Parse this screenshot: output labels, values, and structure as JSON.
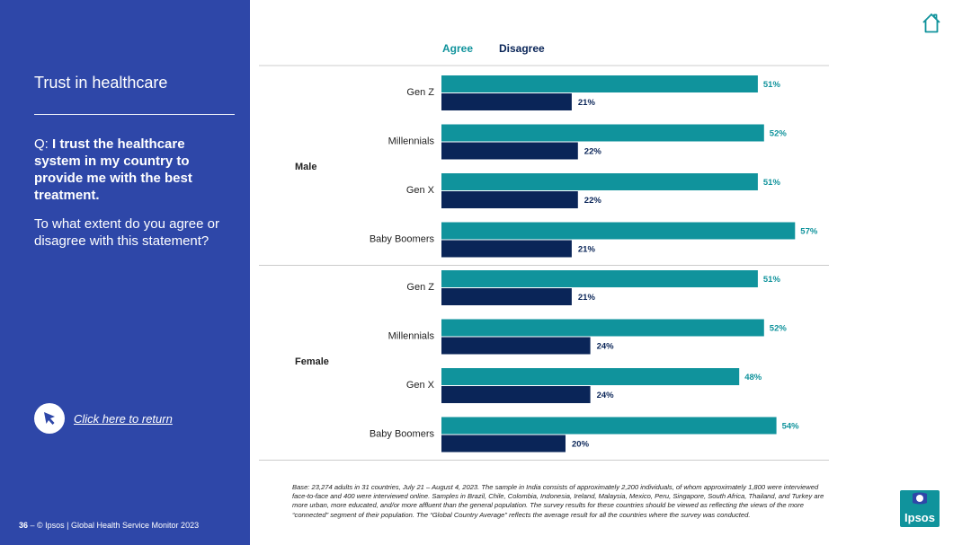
{
  "sidebar": {
    "section_title": "Trust in healthcare",
    "question_prefix": "Q: ",
    "question_bold": "I trust the healthcare system in my country to provide me with the best treatment.",
    "sub_question": "To what extent do you agree or disagree with this statement?",
    "return_link": "Click here to return",
    "footer_page": "36",
    "footer_text": " – © Ipsos | Global Health Service Monitor 2023"
  },
  "legend": {
    "agree": "Agree",
    "disagree": "Disagree"
  },
  "colors": {
    "agree": "#10939c",
    "disagree": "#0a2558",
    "panel": "#2e47a8",
    "home_icon": "#10939c"
  },
  "chart_data": {
    "type": "bar",
    "orientation": "horizontal",
    "value_format": "percent",
    "xlim": [
      0,
      100
    ],
    "groups": [
      {
        "name": "Male",
        "categories": [
          "Gen Z",
          "Millennials",
          "Gen X",
          "Baby Boomers"
        ],
        "series": [
          {
            "name": "Agree",
            "values": [
              51,
              52,
              51,
              57
            ]
          },
          {
            "name": "Disagree",
            "values": [
              21,
              22,
              22,
              21
            ]
          }
        ]
      },
      {
        "name": "Female",
        "categories": [
          "Gen Z",
          "Millennials",
          "Gen X",
          "Baby Boomers"
        ],
        "series": [
          {
            "name": "Agree",
            "values": [
              51,
              52,
              48,
              54
            ]
          },
          {
            "name": "Disagree",
            "values": [
              21,
              24,
              24,
              20
            ]
          }
        ]
      }
    ]
  },
  "base_note": "Base: 23,274 adults in 31 countries, July 21 – August 4, 2023. The sample in India consists of approximately 2,200 individuals, of whom approximately 1,800 were interviewed face-to-face and 400 were interviewed online. Samples in Brazil, Chile, Colombia, Indonesia, Ireland, Malaysia, Mexico, Peru, Singapore, South Africa, Thailand, and Turkey are more urban, more educated, and/or more affluent than the general population. The survey results for these countries should be viewed as reflecting the views of the more “connected” segment of their population. The “Global Country Average” reflects the average result for all the countries where the survey was conducted.",
  "logo": {
    "text": "Ipsos"
  }
}
